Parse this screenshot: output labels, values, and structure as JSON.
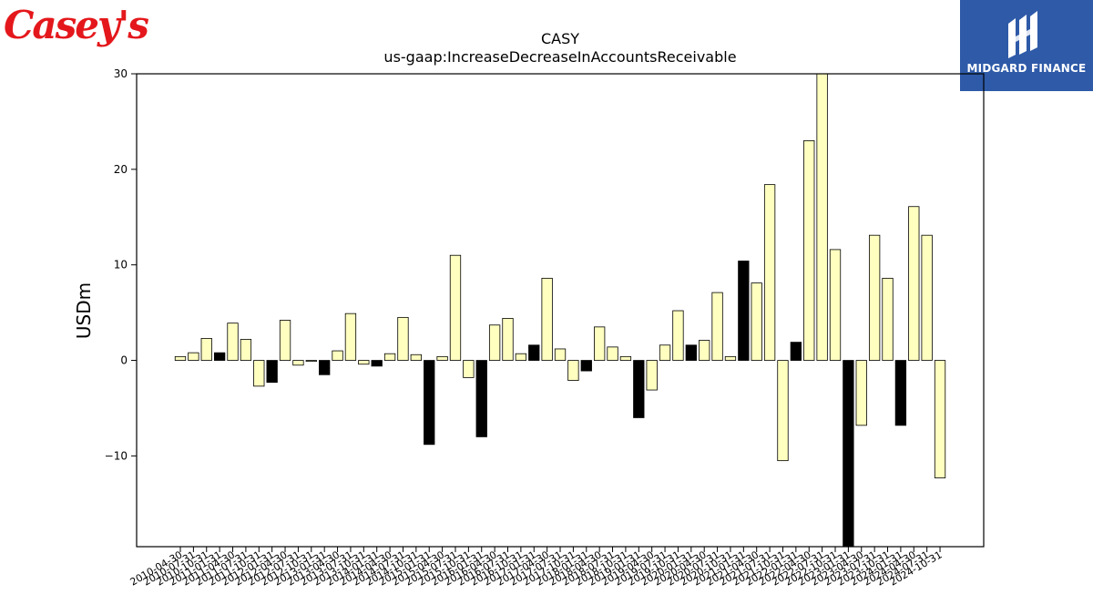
{
  "header": {
    "brand_logo_text": "Casey's",
    "partner_logo_name": "MIDGARD FINANCE"
  },
  "colors": {
    "brand": "#e4181c",
    "partner_background": "#2e5aa8",
    "bar_light": "#ffffc0",
    "bar_dark": "#000000"
  },
  "chart_data": {
    "type": "bar",
    "title": "CASY",
    "subtitle": "us-gaap:IncreaseDecreaseInAccountsReceivable",
    "xlabel": "",
    "ylabel": "USDm",
    "ylim": [
      -19.5,
      30
    ],
    "yticks": [
      -10,
      0,
      10,
      20,
      30
    ],
    "grid": false,
    "categories": [
      "2010-04-30",
      "2010-07-31",
      "2010-10-31",
      "2011-01-31",
      "2011-04-30",
      "2011-07-31",
      "2011-10-31",
      "2012-01-31",
      "2012-04-30",
      "2012-07-31",
      "2012-10-31",
      "2013-01-31",
      "2013-04-30",
      "2013-07-31",
      "2013-10-31",
      "2014-01-31",
      "2014-04-30",
      "2014-07-31",
      "2014-10-31",
      "2015-01-31",
      "2015-04-30",
      "2015-07-31",
      "2015-10-31",
      "2016-01-31",
      "2016-04-30",
      "2016-07-31",
      "2016-10-31",
      "2017-01-31",
      "2017-04-30",
      "2017-07-31",
      "2017-10-31",
      "2018-01-31",
      "2018-04-30",
      "2018-07-31",
      "2018-10-31",
      "2019-01-31",
      "2019-04-30",
      "2019-07-31",
      "2019-10-31",
      "2020-01-31",
      "2020-04-30",
      "2020-07-31",
      "2020-10-31",
      "2021-01-31",
      "2021-04-30",
      "2021-07-31",
      "2021-10-31",
      "2022-01-31",
      "2022-04-30",
      "2022-07-31",
      "2022-10-31",
      "2023-01-31",
      "2023-04-30",
      "2023-07-31",
      "2023-10-31",
      "2024-01-31",
      "2024-04-30",
      "2024-07-31",
      "2024-10-31"
    ],
    "values": [
      0.4,
      0.8,
      2.3,
      0.8,
      3.9,
      2.2,
      -2.7,
      -2.3,
      4.2,
      -0.5,
      -0.1,
      -1.5,
      1.0,
      4.9,
      -0.4,
      -0.6,
      0.7,
      4.5,
      0.6,
      -8.8,
      0.4,
      11.0,
      -1.8,
      -8.0,
      3.7,
      4.4,
      0.7,
      1.6,
      8.6,
      1.2,
      -2.1,
      -1.1,
      3.5,
      1.4,
      0.4,
      -6.0,
      -3.1,
      1.6,
      5.2,
      1.6,
      2.1,
      7.1,
      0.4,
      10.4,
      8.1,
      18.4,
      -10.5,
      1.9,
      23.0,
      30.5,
      11.6,
      -19.5,
      -6.8,
      13.1,
      8.6,
      -6.8,
      16.1,
      13.1,
      -12.3
    ],
    "dark_bar_indices": [
      3,
      7,
      11,
      15,
      19,
      23,
      27,
      31,
      35,
      39,
      43,
      47,
      51,
      55
    ]
  }
}
